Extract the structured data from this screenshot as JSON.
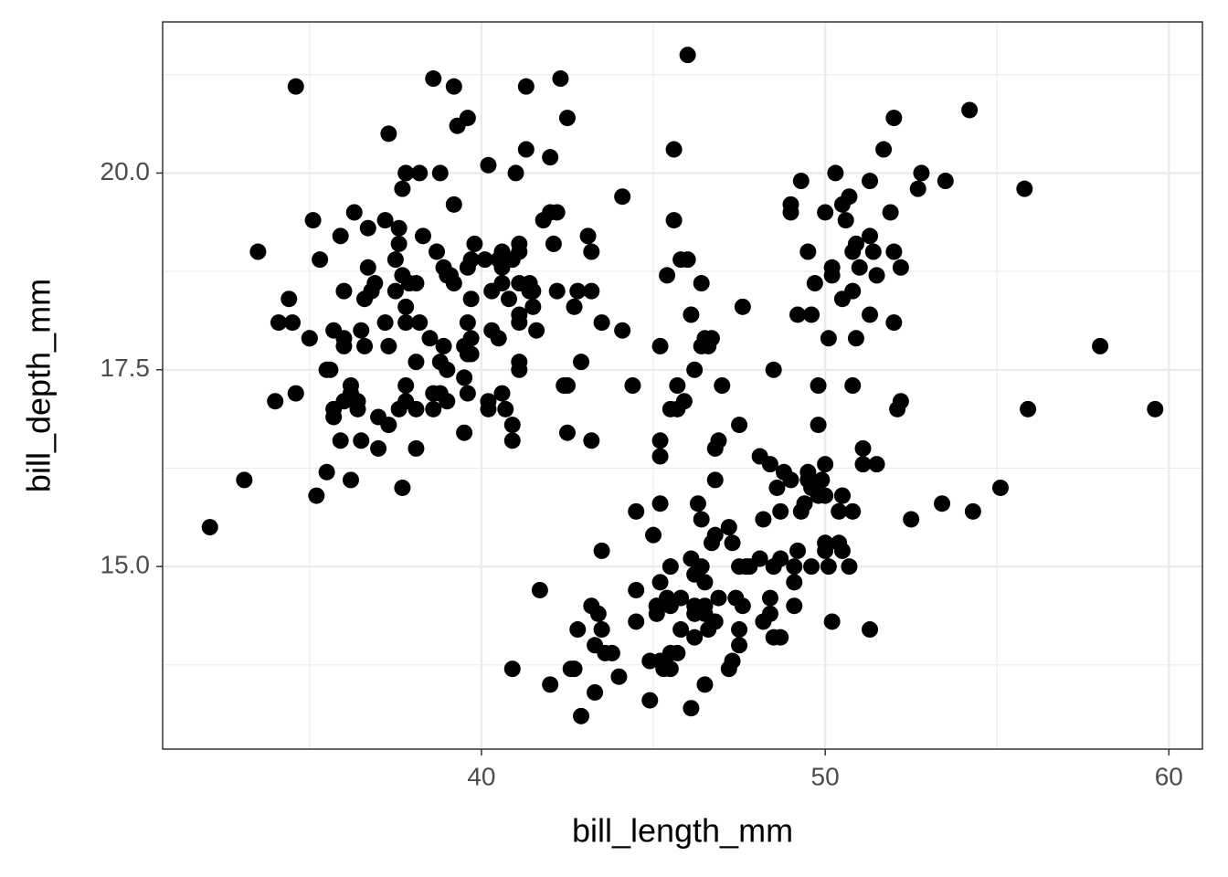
{
  "chart_data": {
    "type": "scatter",
    "x_label": "bill_length_mm",
    "y_label": "bill_depth_mm",
    "xlim": [
      30.725,
      60.975
    ],
    "ylim": [
      12.68,
      21.92
    ],
    "xticks": [
      40,
      50,
      60
    ],
    "yticks": [
      {
        "value": 15,
        "label": "15.0"
      },
      17.5,
      {
        "value": 20,
        "label": "20.0"
      }
    ],
    "x_minor_grid": [
      35,
      45,
      55
    ],
    "y_minor_grid": [
      13.75,
      16.25,
      18.75,
      21.25
    ],
    "grid": true,
    "color": "#000000",
    "x": [
      39.1,
      39.5,
      40.3,
      36.7,
      39.3,
      38.9,
      39.2,
      34.1,
      42,
      37.8,
      37.8,
      41.1,
      38.6,
      34.6,
      36.6,
      38.7,
      42.5,
      34.4,
      46,
      37.8,
      37.7,
      35.9,
      38.2,
      38.8,
      35.3,
      40.6,
      40.5,
      37.9,
      40.5,
      39.5,
      37.2,
      39.5,
      40.9,
      36.4,
      39.2,
      38.8,
      42.2,
      37.6,
      39.8,
      36.5,
      40.8,
      36,
      44.1,
      37,
      39.6,
      41.1,
      37.5,
      36,
      42.3,
      39.6,
      40.1,
      35,
      42,
      34.5,
      41.4,
      39,
      40.6,
      36.5,
      37.6,
      35.7,
      41.3,
      37.6,
      41.1,
      36.4,
      41.6,
      35.5,
      41.1,
      35.9,
      41.8,
      33.5,
      39.7,
      39.6,
      45.8,
      35.5,
      42.8,
      40.9,
      37.2,
      36.2,
      42.1,
      34.6,
      42.9,
      36.7,
      35.1,
      37.3,
      41.3,
      36.3,
      36.9,
      38.3,
      38.9,
      35.7,
      41.1,
      34,
      39.6,
      36.2,
      40.8,
      38.1,
      40.3,
      33.1,
      43.2,
      35,
      41,
      37.7,
      37.8,
      37.9,
      39.7,
      38.6,
      38.2,
      38.1,
      43.2,
      38.1,
      45.6,
      39.7,
      42.2,
      39.6,
      42.7,
      38.6,
      37.3,
      35.7,
      41.1,
      36.2,
      37.7,
      40.2,
      41.4,
      35.2,
      40.6,
      38.8,
      41.5,
      39,
      44.1,
      38.5,
      43.1,
      36.8,
      37.5,
      38.1,
      41.1,
      35.6,
      40.2,
      37,
      39.7,
      40.2,
      40.6,
      32.1,
      40.7,
      37.3,
      39,
      39.2,
      36.6,
      36,
      37.8,
      36,
      41.5,
      46.1,
      50,
      48.7,
      50,
      47.6,
      46.5,
      45.4,
      46.7,
      43.3,
      46.8,
      40.9,
      49,
      45.5,
      48.4,
      45.8,
      49.3,
      42,
      49.2,
      46.2,
      48.7,
      50.2,
      45.1,
      46.5,
      46.3,
      42.9,
      46.1,
      44.5,
      47.8,
      48.2,
      50,
      47.3,
      42.8,
      45.1,
      59.6,
      49.1,
      48.4,
      42.6,
      44.4,
      44,
      48.7,
      42.7,
      49.6,
      45.3,
      49.6,
      50.5,
      43.6,
      45.5,
      50.5,
      44.9,
      45.2,
      46.6,
      48.5,
      45.1,
      50.1,
      46.5,
      45,
      43.8,
      45.5,
      43.2,
      50.4,
      45.3,
      46.2,
      45.7,
      54.3,
      45.8,
      49.8,
      46.2,
      49.5,
      43.5,
      50.7,
      47.7,
      46.4,
      48.2,
      46.5,
      46.4,
      48.6,
      47.5,
      51.1,
      45.2,
      45.2,
      49.1,
      52.5,
      47.4,
      50,
      44.9,
      50.8,
      43.4,
      51.3,
      47.5,
      52.1,
      47.5,
      52.2,
      45.5,
      49.5,
      44.5,
      50.8,
      49.4,
      46.9,
      48.4,
      51.1,
      48.5,
      55.9,
      47.2,
      49.1,
      47.3,
      46.8,
      41.7,
      53.4,
      43.3,
      48.1,
      50.5,
      49.8,
      43.5,
      51.5,
      46.2,
      55.1,
      44.5,
      48.8,
      47.2,
      46.8,
      50.4,
      45.2,
      49.9,
      46.5,
      50,
      51.3,
      45.4,
      52.7,
      45.2,
      46.1,
      51.3,
      46,
      51.3,
      46.6,
      51.7,
      47,
      52,
      45.9,
      50.5,
      50.3,
      58,
      46.4,
      49.2,
      42.4,
      48.5,
      43.2,
      50.6,
      46.7,
      52,
      50.5,
      49.5,
      46.4,
      52.8,
      40.9,
      54.2,
      42.5,
      51,
      49.7,
      47.5,
      47.6,
      52,
      46.9,
      53.5,
      49,
      46.2,
      50.9,
      45.5,
      50.9,
      50.8,
      50.1,
      49,
      51.5,
      49.8,
      48.1,
      51.4,
      45.7,
      50.7,
      42.5,
      52.2,
      45.2,
      49.3,
      50.2,
      45.6,
      51.9,
      46.8,
      45.7,
      55.8,
      43.5,
      49.6,
      50.8,
      50.2
    ],
    "values": [
      18.7,
      17.4,
      18,
      19.3,
      20.6,
      17.8,
      19.6,
      18.1,
      20.2,
      17.1,
      17.3,
      17.6,
      21.2,
      21.1,
      17.8,
      19,
      20.7,
      18.4,
      21.5,
      18.3,
      18.7,
      19.2,
      18.1,
      17.2,
      18.9,
      18.6,
      17.9,
      18.6,
      18.9,
      16.7,
      18.1,
      17.8,
      18.9,
      17,
      21.1,
      20,
      18.5,
      19.3,
      19.1,
      18,
      18.4,
      18.5,
      19.7,
      16.9,
      18.8,
      19,
      18.9,
      17.9,
      21.2,
      17.7,
      18.9,
      17.9,
      19.5,
      18.1,
      18.6,
      17.5,
      18.8,
      16.6,
      19.1,
      16.9,
      21.1,
      17,
      18.2,
      17.1,
      18,
      16.2,
      19.1,
      16.6,
      19.4,
      19,
      18.4,
      17.2,
      18.9,
      17.5,
      18.5,
      16.8,
      19.4,
      16.1,
      19.1,
      17.2,
      17.6,
      18.8,
      19.4,
      17.8,
      20.3,
      19.5,
      18.6,
      19.2,
      18.8,
      18,
      18.1,
      17.1,
      18.1,
      17.3,
      18.9,
      18.6,
      18.5,
      16.1,
      18.5,
      17.9,
      20,
      16,
      20,
      18.6,
      18.9,
      17.2,
      20,
      17,
      19,
      16.5,
      20.3,
      17.7,
      19.5,
      20.7,
      18.3,
      17,
      20.5,
      17,
      18.6,
      17.2,
      19.8,
      17,
      18.5,
      15.9,
      19,
      17.6,
      18.3,
      17.1,
      18,
      17.9,
      19.2,
      18.5,
      18.5,
      17.6,
      17.5,
      17.5,
      20.1,
      16.5,
      17.9,
      17.1,
      17.2,
      15.5,
      17,
      16.8,
      18.7,
      18.6,
      18.4,
      17.8,
      18.1,
      17.1,
      18.5,
      13.2,
      16.3,
      14.1,
      15.2,
      14.5,
      13.5,
      14.6,
      15.3,
      13.4,
      15.4,
      13.7,
      16.1,
      13.7,
      14.6,
      14.6,
      15.7,
      13.5,
      15.2,
      14.5,
      15.1,
      14.3,
      14.5,
      14.5,
      15.8,
      13.1,
      15.1,
      14.3,
      15,
      14.3,
      15.3,
      15.3,
      14.2,
      14.5,
      17,
      14.8,
      16.3,
      13.7,
      17.3,
      13.6,
      15.7,
      13.7,
      16,
      13.7,
      15,
      15.9,
      13.9,
      13.9,
      15.9,
      13.3,
      15.8,
      14.2,
      14.1,
      14.4,
      15,
      14.4,
      15.4,
      13.9,
      15,
      14.5,
      15.3,
      13.8,
      14.9,
      13.9,
      15.7,
      14.2,
      16.8,
      14.4,
      16.2,
      14.2,
      15,
      15,
      15.6,
      15.6,
      14.8,
      15,
      16,
      14.2,
      16.3,
      13.8,
      16.4,
      14.5,
      15.6,
      14.6,
      15.9,
      13.8,
      17.3,
      14.4,
      14.2,
      14,
      17,
      15,
      17.1,
      14.5,
      16.1,
      14.7,
      15.7,
      15.8,
      14.6,
      14.4,
      16.5,
      15,
      17,
      15.5,
      15,
      13.8,
      16.1,
      14.7,
      15.8,
      14,
      15.1,
      15.2,
      15.9,
      15.2,
      16.3,
      14.1,
      16,
      15.7,
      16.2,
      13.7,
      14.3,
      15.7,
      14.8,
      16.1,
      17.9,
      19.5,
      19.2,
      18.7,
      19.8,
      17.8,
      18.2,
      18.2,
      18.9,
      19.9,
      17.8,
      20.3,
      17.3,
      18.1,
      17.1,
      19.6,
      20,
      17.8,
      18.6,
      18.2,
      17.3,
      17.5,
      16.6,
      19.4,
      17.9,
      19,
      18.4,
      19,
      17.8,
      20,
      16.6,
      20.8,
      16.7,
      18.8,
      18.6,
      16.8,
      18.3,
      20.7,
      16.6,
      19.9,
      19.5,
      17.5,
      19.1,
      17,
      17.9,
      18.5,
      17.9,
      19.6,
      18.7,
      17.3,
      16.4,
      19,
      17.3,
      19.7,
      17.3,
      18.8,
      16.6,
      19.9,
      18.8,
      19.4,
      19.5,
      16.5,
      17,
      19.8,
      18.1,
      18.2,
      19,
      18.7
    ]
  }
}
